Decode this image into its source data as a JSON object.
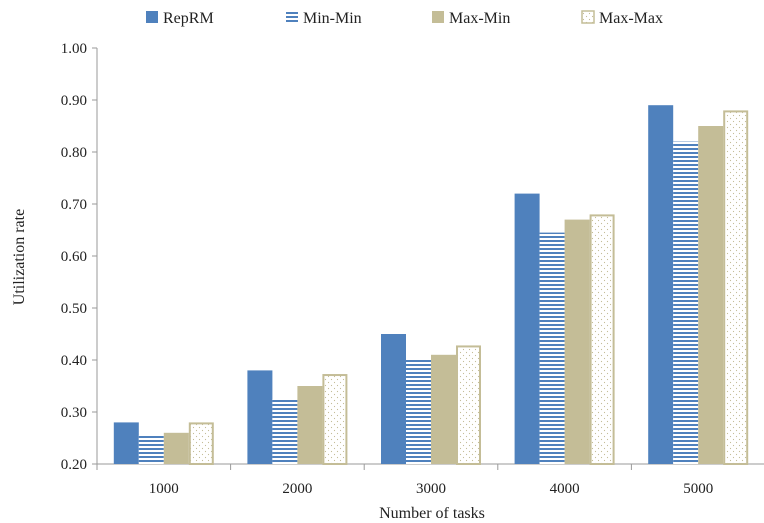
{
  "chart_data": {
    "type": "bar",
    "categories": [
      "1000",
      "2000",
      "3000",
      "4000",
      "5000"
    ],
    "series": [
      {
        "name": "RepRM",
        "values": [
          0.28,
          0.38,
          0.45,
          0.72,
          0.89
        ],
        "color": "#4f81bd",
        "pattern": "solid"
      },
      {
        "name": "Min-Min",
        "values": [
          0.255,
          0.325,
          0.4,
          0.645,
          0.82
        ],
        "color": "#4f81bd",
        "pattern": "horizontal-stripes"
      },
      {
        "name": "Max-Min",
        "values": [
          0.26,
          0.35,
          0.41,
          0.67,
          0.85
        ],
        "color": "#c4bd97",
        "pattern": "solid"
      },
      {
        "name": "Max-Max",
        "values": [
          0.28,
          0.373,
          0.428,
          0.68,
          0.88
        ],
        "color": "#c4bd97",
        "pattern": "dotted-outline"
      }
    ],
    "xlabel": "Number of tasks",
    "ylabel": "Utilization rate",
    "ylim": [
      0.2,
      1.0
    ],
    "yticks": [
      "0.20",
      "0.30",
      "0.40",
      "0.50",
      "0.60",
      "0.70",
      "0.80",
      "0.90",
      "1.00"
    ],
    "grid": false,
    "legend_position": "top"
  }
}
